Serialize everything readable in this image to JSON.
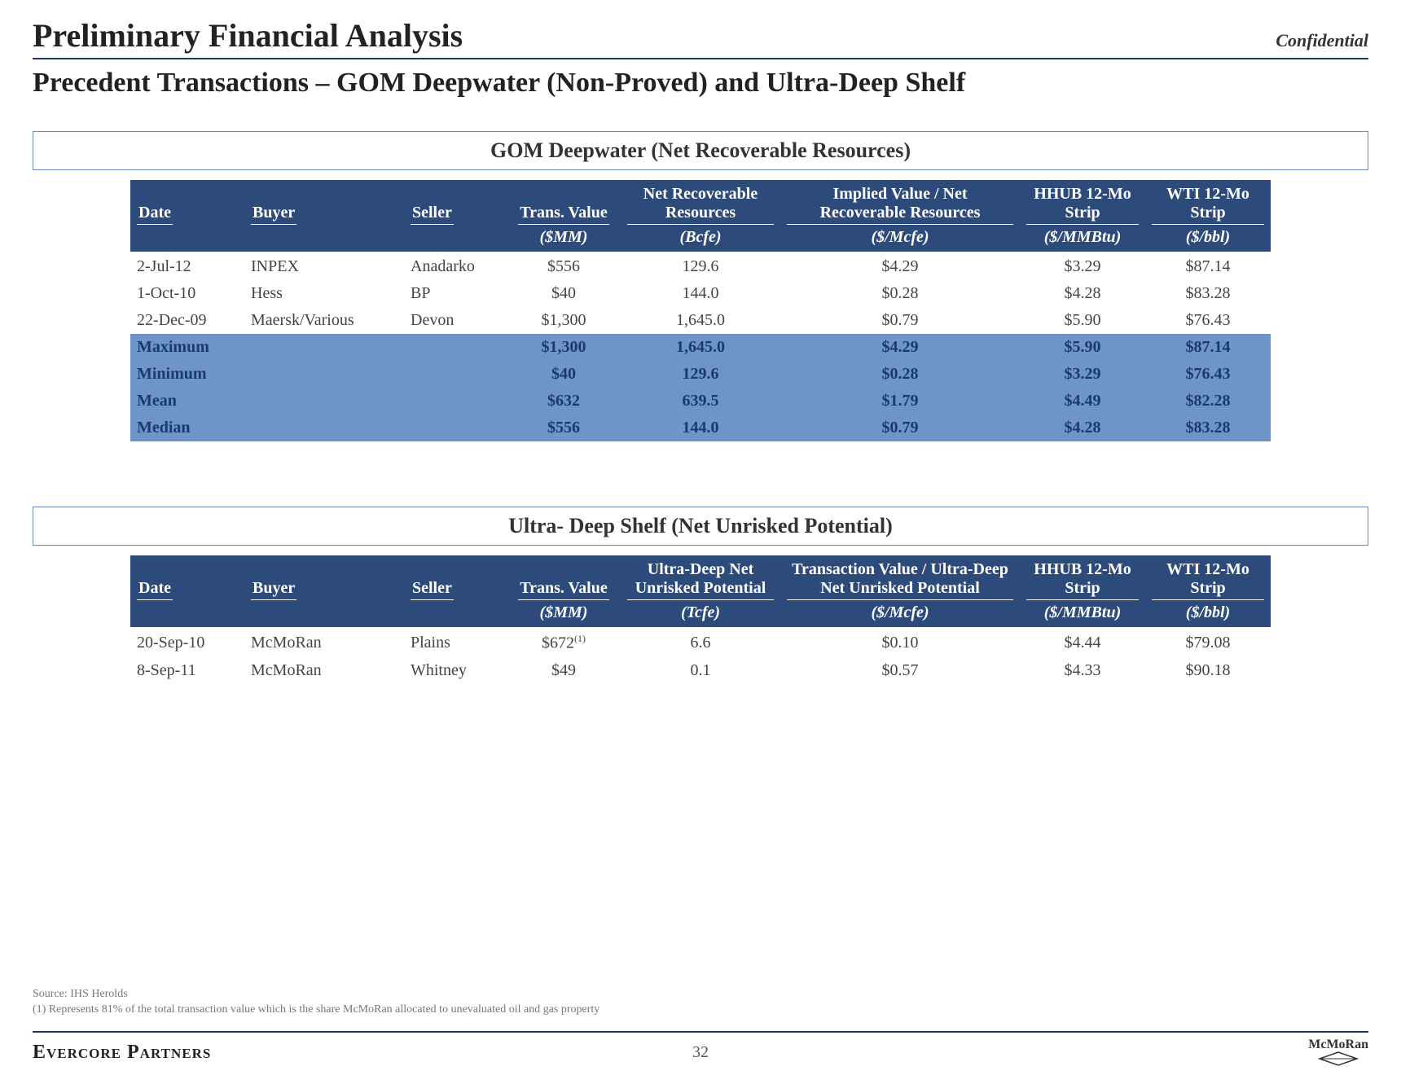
{
  "header": {
    "title": "Preliminary Financial Analysis",
    "confidential": "Confidential"
  },
  "subtitle": "Precedent Transactions – GOM Deepwater (Non-Proved) and Ultra-Deep Shelf",
  "colors": {
    "header_bg": "#2c4a7a",
    "stat_bg": "#6e94c8",
    "border": "#1a3a6e",
    "box_border": "#6b8bbf"
  },
  "table1": {
    "title": "GOM Deepwater (Net Recoverable Resources)",
    "columns": {
      "date": "Date",
      "buyer": "Buyer",
      "seller": "Seller",
      "trans_value": "Trans. Value",
      "resources": "Net Recoverable Resources",
      "implied": "Implied Value / Net Recoverable Resources",
      "hhub": "HHUB 12-Mo Strip",
      "wti": "WTI 12-Mo Strip"
    },
    "units": {
      "trans_value": "($MM)",
      "resources": "(Bcfe)",
      "implied": "($/Mcfe)",
      "hhub": "($/MMBtu)",
      "wti": "($/bbl)"
    },
    "rows": [
      {
        "date": "2-Jul-12",
        "buyer": "INPEX",
        "seller": "Anadarko",
        "value": "$556",
        "res": "129.6",
        "imp": "$4.29",
        "hhub": "$3.29",
        "wti": "$87.14"
      },
      {
        "date": "1-Oct-10",
        "buyer": "Hess",
        "seller": "BP",
        "value": "$40",
        "res": "144.0",
        "imp": "$0.28",
        "hhub": "$4.28",
        "wti": "$83.28"
      },
      {
        "date": "22-Dec-09",
        "buyer": "Maersk/Various",
        "seller": "Devon",
        "value": "$1,300",
        "res": "1,645.0",
        "imp": "$0.79",
        "hhub": "$5.90",
        "wti": "$76.43"
      }
    ],
    "stats": [
      {
        "label": "Maximum",
        "value": "$1,300",
        "res": "1,645.0",
        "imp": "$4.29",
        "hhub": "$5.90",
        "wti": "$87.14"
      },
      {
        "label": "Minimum",
        "value": "$40",
        "res": "129.6",
        "imp": "$0.28",
        "hhub": "$3.29",
        "wti": "$76.43"
      },
      {
        "label": "Mean",
        "value": "$632",
        "res": "639.5",
        "imp": "$1.79",
        "hhub": "$4.49",
        "wti": "$82.28"
      },
      {
        "label": "Median",
        "value": "$556",
        "res": "144.0",
        "imp": "$0.79",
        "hhub": "$4.28",
        "wti": "$83.28"
      }
    ]
  },
  "table2": {
    "title": "Ultra- Deep Shelf (Net Unrisked Potential)",
    "columns": {
      "date": "Date",
      "buyer": "Buyer",
      "seller": "Seller",
      "trans_value": "Trans. Value",
      "potential": "Ultra-Deep Net Unrisked Potential",
      "trans_ratio": "Transaction Value / Ultra-Deep Net Unrisked Potential",
      "hhub": "HHUB 12-Mo Strip",
      "wti": "WTI 12-Mo Strip"
    },
    "units": {
      "trans_value": "($MM)",
      "potential": "(Tcfe)",
      "trans_ratio": "($/Mcfe)",
      "hhub": "($/MMBtu)",
      "wti": "($/bbl)"
    },
    "rows": [
      {
        "date": "20-Sep-10",
        "buyer": "McMoRan",
        "seller": "Plains",
        "value": "$672",
        "note": "(1)",
        "pot": "6.6",
        "ratio": "$0.10",
        "hhub": "$4.44",
        "wti": "$79.08"
      },
      {
        "date": "8-Sep-11",
        "buyer": "McMoRan",
        "seller": "Whitney",
        "value": "$49",
        "note": "",
        "pot": "0.1",
        "ratio": "$0.57",
        "hhub": "$4.33",
        "wti": "$90.18"
      }
    ]
  },
  "footnotes": {
    "source": "Source: IHS Herolds",
    "note1": "(1) Represents 81% of the total transaction value which is the share McMoRan allocated to unevaluated oil and gas property"
  },
  "footer": {
    "left": "Evercore Partners",
    "page": "32",
    "logo": "McMoRan"
  }
}
